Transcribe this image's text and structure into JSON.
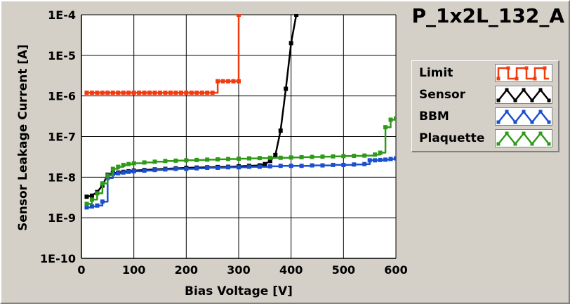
{
  "chart_data": {
    "type": "line",
    "title": "P_1x2L_132_A",
    "xlabel": "Bias Voltage [V]",
    "ylabel": "Sensor Leakage Current [A]",
    "xlim": [
      0,
      600
    ],
    "ylim": [
      1e-10,
      0.0001
    ],
    "yscale": "log",
    "grid": true,
    "legend_position": "right",
    "x_ticks": [
      0,
      100,
      200,
      300,
      400,
      500,
      600
    ],
    "x_tick_labels": [
      "0",
      "100",
      "200",
      "300",
      "400",
      "500",
      "600"
    ],
    "y_ticks": [
      1e-10,
      1e-09,
      1e-08,
      1e-07,
      1e-06,
      1e-05,
      0.0001
    ],
    "y_tick_labels": [
      "1E-10",
      "1E-9",
      "1E-8",
      "1E-7",
      "1E-6",
      "1E-5",
      "1E-4"
    ],
    "series": [
      {
        "name": "Limit",
        "color": "#f03c10",
        "step": true,
        "icon": "square-wave-icon",
        "points": [
          [
            10,
            1.2e-06
          ],
          [
            20,
            1.2e-06
          ],
          [
            30,
            1.2e-06
          ],
          [
            40,
            1.2e-06
          ],
          [
            50,
            1.2e-06
          ],
          [
            60,
            1.2e-06
          ],
          [
            70,
            1.2e-06
          ],
          [
            80,
            1.2e-06
          ],
          [
            90,
            1.2e-06
          ],
          [
            100,
            1.2e-06
          ],
          [
            110,
            1.2e-06
          ],
          [
            120,
            1.2e-06
          ],
          [
            130,
            1.2e-06
          ],
          [
            140,
            1.2e-06
          ],
          [
            150,
            1.2e-06
          ],
          [
            160,
            1.2e-06
          ],
          [
            170,
            1.2e-06
          ],
          [
            180,
            1.2e-06
          ],
          [
            190,
            1.2e-06
          ],
          [
            200,
            1.2e-06
          ],
          [
            210,
            1.2e-06
          ],
          [
            220,
            1.2e-06
          ],
          [
            230,
            1.2e-06
          ],
          [
            240,
            1.2e-06
          ],
          [
            250,
            1.2e-06
          ],
          [
            260,
            2.3e-06
          ],
          [
            270,
            2.3e-06
          ],
          [
            280,
            2.3e-06
          ],
          [
            290,
            2.3e-06
          ],
          [
            300,
            2.3e-06
          ],
          [
            300,
            0.0001
          ]
        ]
      },
      {
        "name": "Sensor",
        "color": "#000000",
        "step": false,
        "icon": "triangle-wave-icon",
        "points": [
          [
            10,
            3.3e-09
          ],
          [
            20,
            3.5e-09
          ],
          [
            30,
            4.3e-09
          ],
          [
            40,
            6.2e-09
          ],
          [
            50,
            1.15e-08
          ],
          [
            60,
            1.25e-08
          ],
          [
            70,
            1.3e-08
          ],
          [
            80,
            1.35e-08
          ],
          [
            90,
            1.4e-08
          ],
          [
            100,
            1.45e-08
          ],
          [
            120,
            1.5e-08
          ],
          [
            140,
            1.55e-08
          ],
          [
            160,
            1.6e-08
          ],
          [
            180,
            1.65e-08
          ],
          [
            200,
            1.7e-08
          ],
          [
            220,
            1.72e-08
          ],
          [
            240,
            1.75e-08
          ],
          [
            260,
            1.78e-08
          ],
          [
            280,
            1.8e-08
          ],
          [
            300,
            1.85e-08
          ],
          [
            320,
            1.9e-08
          ],
          [
            340,
            1.95e-08
          ],
          [
            350,
            2.1e-08
          ],
          [
            360,
            2.5e-08
          ],
          [
            370,
            3.5e-08
          ],
          [
            380,
            1.4e-07
          ],
          [
            390,
            1.5e-06
          ],
          [
            400,
            2e-05
          ],
          [
            410,
            0.0001
          ]
        ]
      },
      {
        "name": "BBM",
        "color": "#1a4fd0",
        "step": true,
        "icon": "triangle-wave-icon",
        "points": [
          [
            10,
            1.8e-09
          ],
          [
            20,
            1.9e-09
          ],
          [
            30,
            2e-09
          ],
          [
            40,
            2.5e-09
          ],
          [
            50,
            9.5e-09
          ],
          [
            60,
            1.2e-08
          ],
          [
            70,
            1.25e-08
          ],
          [
            80,
            1.3e-08
          ],
          [
            90,
            1.35e-08
          ],
          [
            100,
            1.4e-08
          ],
          [
            120,
            1.45e-08
          ],
          [
            140,
            1.5e-08
          ],
          [
            160,
            1.55e-08
          ],
          [
            180,
            1.6e-08
          ],
          [
            200,
            1.6e-08
          ],
          [
            220,
            1.65e-08
          ],
          [
            240,
            1.7e-08
          ],
          [
            260,
            1.7e-08
          ],
          [
            280,
            1.75e-08
          ],
          [
            300,
            1.75e-08
          ],
          [
            320,
            1.8e-08
          ],
          [
            340,
            1.8e-08
          ],
          [
            360,
            1.85e-08
          ],
          [
            380,
            1.9e-08
          ],
          [
            400,
            1.9e-08
          ],
          [
            420,
            1.9e-08
          ],
          [
            440,
            1.95e-08
          ],
          [
            460,
            1.95e-08
          ],
          [
            480,
            2e-08
          ],
          [
            500,
            2e-08
          ],
          [
            520,
            2.05e-08
          ],
          [
            540,
            2.1e-08
          ],
          [
            550,
            2.6e-08
          ],
          [
            560,
            2.6e-08
          ],
          [
            570,
            2.65e-08
          ],
          [
            580,
            2.7e-08
          ],
          [
            590,
            2.8e-08
          ],
          [
            600,
            2.9e-08
          ]
        ]
      },
      {
        "name": "Plaquette",
        "color": "#2e9a18",
        "step": true,
        "icon": "triangle-wave-icon",
        "points": [
          [
            10,
            2.2e-09
          ],
          [
            20,
            2.8e-09
          ],
          [
            30,
            4e-09
          ],
          [
            40,
            7e-09
          ],
          [
            50,
            1.1e-08
          ],
          [
            60,
            1.6e-08
          ],
          [
            70,
            1.8e-08
          ],
          [
            80,
            2e-08
          ],
          [
            90,
            2.1e-08
          ],
          [
            100,
            2.2e-08
          ],
          [
            120,
            2.3e-08
          ],
          [
            140,
            2.4e-08
          ],
          [
            160,
            2.5e-08
          ],
          [
            180,
            2.55e-08
          ],
          [
            200,
            2.6e-08
          ],
          [
            220,
            2.65e-08
          ],
          [
            240,
            2.7e-08
          ],
          [
            260,
            2.75e-08
          ],
          [
            280,
            2.8e-08
          ],
          [
            300,
            2.85e-08
          ],
          [
            320,
            2.9e-08
          ],
          [
            340,
            2.95e-08
          ],
          [
            360,
            3e-08
          ],
          [
            380,
            3e-08
          ],
          [
            400,
            3.05e-08
          ],
          [
            420,
            3.1e-08
          ],
          [
            440,
            3.15e-08
          ],
          [
            460,
            3.2e-08
          ],
          [
            480,
            3.25e-08
          ],
          [
            500,
            3.3e-08
          ],
          [
            520,
            3.35e-08
          ],
          [
            540,
            3.4e-08
          ],
          [
            560,
            3.6e-08
          ],
          [
            570,
            4e-08
          ],
          [
            580,
            1.7e-07
          ],
          [
            590,
            2.6e-07
          ],
          [
            600,
            2.8e-07
          ]
        ]
      }
    ]
  }
}
